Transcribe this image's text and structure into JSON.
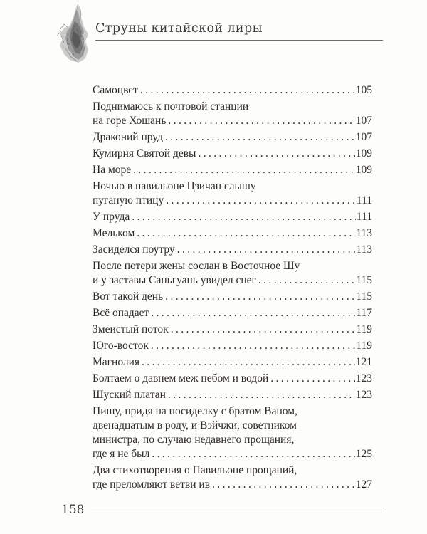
{
  "header": {
    "running_title": "Струны китайской лиры",
    "ornament_icon": "chinese-figurine-engraving"
  },
  "toc": {
    "entries": [
      {
        "lines": [
          "Самоцвет"
        ],
        "page": "105"
      },
      {
        "lines": [
          "Поднимаюсь к почтовой станции",
          "на горе Хошань"
        ],
        "page": "107"
      },
      {
        "lines": [
          "Драконий пруд"
        ],
        "page": "107"
      },
      {
        "lines": [
          "Кумирня Святой девы"
        ],
        "page": "109"
      },
      {
        "lines": [
          "На море"
        ],
        "page": "109"
      },
      {
        "lines": [
          "Ночью в павильоне Цзичан слышу",
          "пуганую птицу"
        ],
        "page": "111"
      },
      {
        "lines": [
          "У пруда"
        ],
        "page": "111"
      },
      {
        "lines": [
          "Мельком"
        ],
        "page": "113"
      },
      {
        "lines": [
          "Засиделся поутру"
        ],
        "page": "113"
      },
      {
        "lines": [
          "После потери жены сослан в Восточное Шу",
          "и у заставы Саньгуань увидел снег"
        ],
        "page": "115"
      },
      {
        "lines": [
          "Вот такой день"
        ],
        "page": "115"
      },
      {
        "lines": [
          "Всё опадает"
        ],
        "page": "117"
      },
      {
        "lines": [
          "Змеистый поток"
        ],
        "page": "119"
      },
      {
        "lines": [
          "Юго-восток"
        ],
        "page": "119"
      },
      {
        "lines": [
          "Магнолия"
        ],
        "page": "121"
      },
      {
        "lines": [
          "Болтаем о давнем меж небом и водой"
        ],
        "page": "123"
      },
      {
        "lines": [
          "Шуский платан"
        ],
        "page": "123"
      },
      {
        "lines": [
          "Пишу, придя на посиделку с братом Ваном,",
          "двенадцатым в роду, и Вэйчжи, советником",
          "министра, по случаю недавнего прощания,",
          "где я не был"
        ],
        "page": "125"
      },
      {
        "lines": [
          "Два стихотворения о Павильоне прощаний,",
          "где преломляют ветви ив"
        ],
        "page": "127"
      }
    ]
  },
  "footer": {
    "page_number": "158"
  }
}
